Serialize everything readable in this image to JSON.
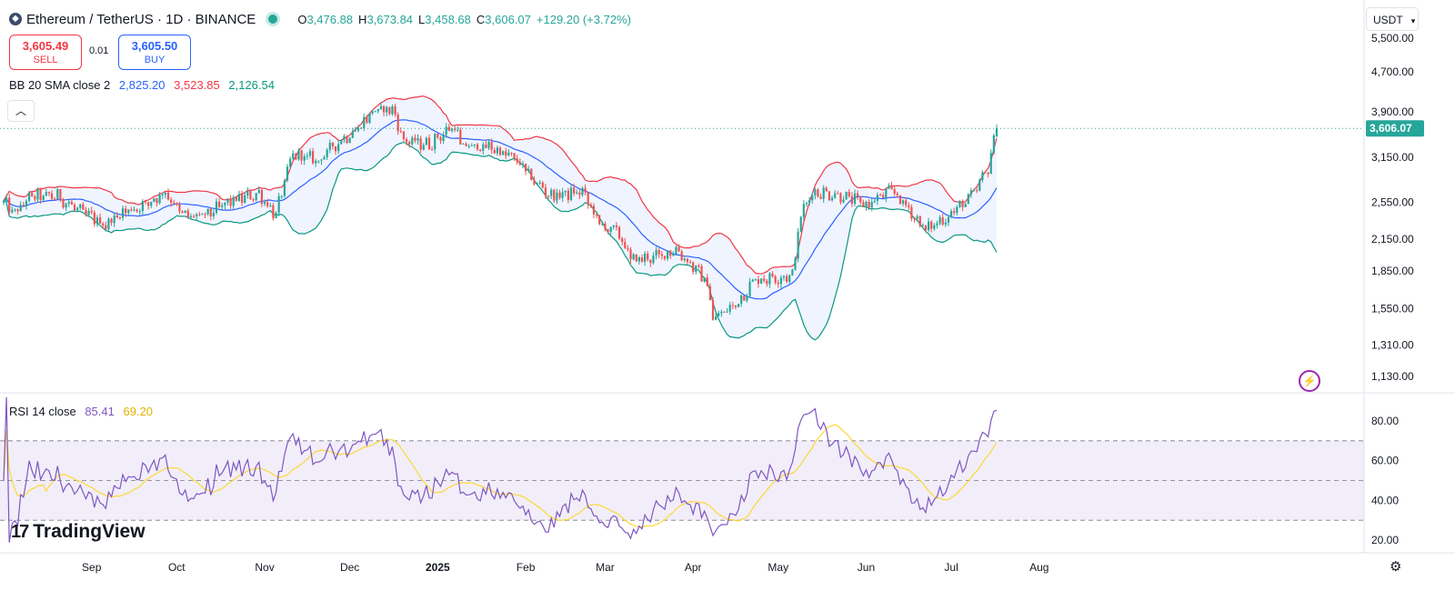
{
  "header": {
    "symbol": "Ethereum / TetherUS · 1D · BINANCE",
    "coin_icon": "ethereum-icon",
    "open_label": "O",
    "open": "3,476.88",
    "high_label": "H",
    "high": "3,673.84",
    "low_label": "L",
    "low": "3,458.68",
    "close_label": "C",
    "close": "3,606.07",
    "change": "+129.20 (+3.72%)"
  },
  "trade": {
    "sell_price": "3,605.49",
    "sell_label": "SELL",
    "spread": "0.01",
    "buy_price": "3,605.50",
    "buy_label": "BUY"
  },
  "bb_legend": {
    "name": "BB 20 SMA close 2",
    "basis": "2,825.20",
    "upper": "3,523.85",
    "lower": "2,126.54"
  },
  "rsi_legend": {
    "name": "RSI 14 close",
    "rsi": "85.41",
    "ma": "69.20"
  },
  "currency_button": "USDT",
  "brand": "TradingView",
  "colors": {
    "up": "#26a69a",
    "down": "#ef5350",
    "basis": "#2962ff",
    "upper": "#f23645",
    "lower": "#089981",
    "band_fill": "#2962ff",
    "rsi": "#7e57c2",
    "rsi_ma": "#fdd835"
  },
  "chart_data": [
    {
      "type": "candlestick",
      "title": "Ethereum / TetherUS · 1D · BINANCE",
      "y_ticks": [
        "5,500.00",
        "4,700.00",
        "3,900.00",
        "3,150.00",
        "2,550.00",
        "2,150.00",
        "1,850.00",
        "1,550.00",
        "1,310.00",
        "1,130.00"
      ],
      "y_tick_values": [
        5500,
        4700,
        3900,
        3150,
        2550,
        2150,
        1850,
        1550,
        1310,
        1130
      ],
      "y_scale": "log",
      "last_price": "3,606.07",
      "x_ticks": [
        "Sep",
        "Oct",
        "Nov",
        "Dec",
        "2025",
        "Feb",
        "Mar",
        "Apr",
        "May",
        "Jun",
        "Jul",
        "Aug"
      ],
      "x_tick_dates": [
        "2024-09-01",
        "2024-10-01",
        "2024-11-01",
        "2024-12-01",
        "2025-01-01",
        "2025-02-01",
        "2025-03-01",
        "2025-04-01",
        "2025-05-01",
        "2025-06-01",
        "2025-07-01",
        "2025-08-01"
      ],
      "close_anchors": [
        [
          "2024-08-01",
          2550
        ],
        [
          "2024-08-05",
          2420
        ],
        [
          "2024-08-10",
          2610
        ],
        [
          "2024-08-20",
          2630
        ],
        [
          "2024-08-27",
          2460
        ],
        [
          "2024-09-06",
          2300
        ],
        [
          "2024-09-12",
          2440
        ],
        [
          "2024-09-20",
          2520
        ],
        [
          "2024-09-27",
          2680
        ],
        [
          "2024-10-03",
          2400
        ],
        [
          "2024-10-10",
          2380
        ],
        [
          "2024-10-20",
          2560
        ],
        [
          "2024-10-30",
          2660
        ],
        [
          "2024-11-05",
          2400
        ],
        [
          "2024-11-11",
          3200
        ],
        [
          "2024-11-13",
          3170
        ],
        [
          "2024-11-20",
          3100
        ],
        [
          "2024-11-26",
          3350
        ],
        [
          "2024-12-04",
          3620
        ],
        [
          "2024-12-09",
          3900
        ],
        [
          "2024-12-16",
          3950
        ],
        [
          "2024-12-20",
          3400
        ],
        [
          "2024-12-29",
          3350
        ],
        [
          "2025-01-07",
          3660
        ],
        [
          "2025-01-09",
          3320
        ],
        [
          "2025-01-20",
          3300
        ],
        [
          "2025-01-29",
          3100
        ],
        [
          "2025-02-03",
          2850
        ],
        [
          "2025-02-10",
          2630
        ],
        [
          "2025-02-21",
          2680
        ],
        [
          "2025-02-27",
          2300
        ],
        [
          "2025-03-06",
          2200
        ],
        [
          "2025-03-10",
          1950
        ],
        [
          "2025-03-20",
          1980
        ],
        [
          "2025-03-26",
          2050
        ],
        [
          "2025-04-06",
          1750
        ],
        [
          "2025-04-08",
          1480
        ],
        [
          "2025-04-16",
          1580
        ],
        [
          "2025-04-23",
          1780
        ],
        [
          "2025-05-06",
          1810
        ],
        [
          "2025-05-09",
          2400
        ],
        [
          "2025-05-13",
          2680
        ],
        [
          "2025-05-22",
          2650
        ],
        [
          "2025-06-01",
          2520
        ],
        [
          "2025-06-10",
          2700
        ],
        [
          "2025-06-22",
          2240
        ],
        [
          "2025-07-01",
          2420
        ],
        [
          "2025-07-09",
          2650
        ],
        [
          "2025-07-14",
          3000
        ],
        [
          "2025-07-17",
          3600
        ]
      ],
      "indicators": {
        "bollinger": {
          "period": 20,
          "stddev": 2,
          "last_basis": 2825.2,
          "last_upper": 3523.85,
          "last_lower": 2126.54
        }
      }
    },
    {
      "type": "line",
      "title": "RSI 14 close",
      "y_ticks": [
        "80.00",
        "60.00",
        "40.00",
        "20.00"
      ],
      "y_tick_values": [
        80,
        60,
        40,
        20
      ],
      "bands": [
        70,
        50,
        30
      ],
      "last_rsi": 85.41,
      "last_ma": 69.2
    }
  ]
}
